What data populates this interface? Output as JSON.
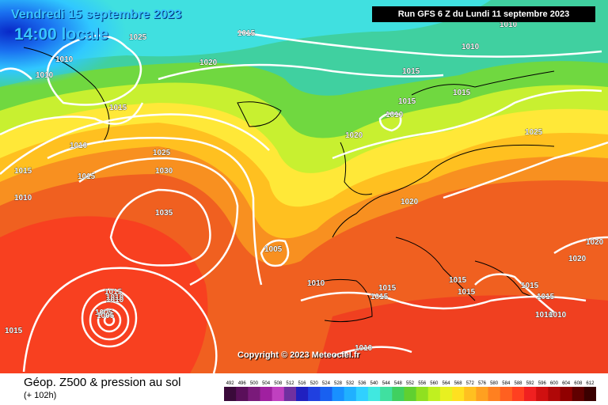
{
  "header": {
    "date": "Vendredi 15 septembre 2023",
    "time": "14:00 locale",
    "run": "Run GFS 6 Z du Lundi 11 septembre 2023"
  },
  "copyright": "Copyright © 2023 Meteociel.fr",
  "legend": {
    "title": "Géop. Z500 & pression au sol",
    "subtitle": "(+ 102h)",
    "scale_values": [
      "492",
      "496",
      "500",
      "504",
      "508",
      "512",
      "516",
      "520",
      "524",
      "528",
      "532",
      "536",
      "540",
      "544",
      "548",
      "552",
      "556",
      "560",
      "564",
      "568",
      "572",
      "576",
      "580",
      "584",
      "588",
      "592",
      "596",
      "600",
      "604",
      "608",
      "612"
    ],
    "scale_colors": [
      "#3a0a3a",
      "#5a0f5a",
      "#7a1a7a",
      "#a020a0",
      "#c040c0",
      "#7030a0",
      "#2020c0",
      "#2040e0",
      "#1860f0",
      "#1890ff",
      "#20b0ff",
      "#30d0ff",
      "#40e8e0",
      "#40e0a0",
      "#40d060",
      "#60d030",
      "#90e020",
      "#c0f020",
      "#e8f020",
      "#ffe020",
      "#ffc020",
      "#ffa020",
      "#ff8020",
      "#ff6020",
      "#ff4020",
      "#f02020",
      "#d01010",
      "#b00808",
      "#900000",
      "#600000",
      "#3a0000"
    ]
  },
  "isobar_labels": [
    "1005",
    "1010",
    "1015",
    "1020",
    "1025",
    "1030",
    "1035",
    "1025",
    "1015",
    "1010",
    "1010",
    "1020",
    "1015",
    "1015",
    "1010",
    "1010",
    "1015",
    "1010",
    "1020",
    "1025",
    "1020",
    "1020",
    "1005",
    "1010",
    "1015",
    "1015",
    "1015",
    "1015",
    "1015",
    "1015",
    "1015",
    "1010",
    "1010",
    "1010",
    "1010",
    "1005",
    "1015",
    "1010",
    "1015",
    "1015",
    "1010"
  ]
}
